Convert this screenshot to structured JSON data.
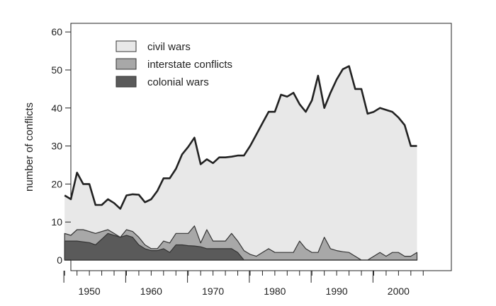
{
  "chart_data": {
    "type": "area",
    "ylabel": "number of conflicts",
    "xlabel": "",
    "title": "",
    "xlim": [
      1945,
      2005
    ],
    "ylim": [
      0,
      60
    ],
    "xticks": [
      1950,
      1960,
      1970,
      1980,
      1990,
      2000
    ],
    "yticks": [
      0,
      10,
      20,
      30,
      40,
      50,
      60
    ],
    "grid": false,
    "legend_position": "top-left",
    "x": [
      1946,
      1947,
      1948,
      1949,
      1950,
      1951,
      1952,
      1953,
      1954,
      1955,
      1956,
      1957,
      1958,
      1959,
      1960,
      1961,
      1962,
      1963,
      1964,
      1965,
      1966,
      1967,
      1968,
      1969,
      1970,
      1971,
      1972,
      1973,
      1974,
      1975,
      1976,
      1977,
      1978,
      1979,
      1980,
      1981,
      1982,
      1983,
      1984,
      1985,
      1986,
      1987,
      1988,
      1989,
      1990,
      1991,
      1992,
      1993,
      1994,
      1995,
      1996,
      1997,
      1998,
      1999,
      2000,
      2001,
      2002,
      2003
    ],
    "series": [
      {
        "name": "colonial wars",
        "color": "#5a5a5a",
        "values": [
          5,
          5,
          5,
          4.8,
          4.6,
          4,
          5.5,
          7,
          6.5,
          6,
          6.5,
          6,
          4,
          3,
          2.5,
          2.5,
          3,
          2,
          4,
          4,
          3.8,
          3.7,
          3.5,
          3,
          3,
          3,
          3,
          3,
          2,
          0,
          0,
          0,
          0,
          0,
          0,
          0,
          0,
          0,
          0,
          0,
          0,
          0,
          0,
          0,
          0,
          0,
          0,
          0,
          0,
          0,
          0,
          0,
          0,
          0,
          0,
          0,
          0,
          0
        ]
      },
      {
        "name": "interstate conflicts",
        "color": "#a8a8a8",
        "values": [
          2,
          1.5,
          3,
          3.2,
          2.9,
          3,
          2,
          1,
          0.5,
          0,
          1.5,
          1.5,
          2,
          1,
          0.5,
          0.5,
          2,
          2.5,
          3,
          3,
          3.2,
          5.3,
          1,
          5,
          2,
          2,
          2,
          4,
          3,
          2.5,
          1.5,
          1,
          2,
          3,
          2,
          2,
          2,
          2,
          5,
          3,
          2,
          2,
          6,
          3,
          2.5,
          2.2,
          2,
          1,
          0,
          0,
          1,
          2,
          1,
          2,
          2,
          1,
          1,
          2
        ]
      },
      {
        "name": "civil wars",
        "color": "#e8e8e8",
        "values": [
          10,
          9.5,
          15,
          12,
          12.5,
          7.5,
          7,
          8,
          8,
          7.5,
          9,
          9.8,
          11.2,
          11.2,
          13,
          15.2,
          16.5,
          17,
          17,
          20.8,
          22.8,
          23.2,
          20.7,
          18.5,
          20.5,
          22,
          22,
          20.2,
          22.5,
          25,
          28.5,
          32,
          34,
          36,
          37,
          41.5,
          41,
          42,
          36,
          36,
          40,
          46.5,
          34,
          41,
          45,
          48,
          49,
          44,
          45,
          38.5,
          38,
          38,
          38.5,
          37,
          35.5,
          34.5,
          29,
          28
        ]
      }
    ]
  }
}
